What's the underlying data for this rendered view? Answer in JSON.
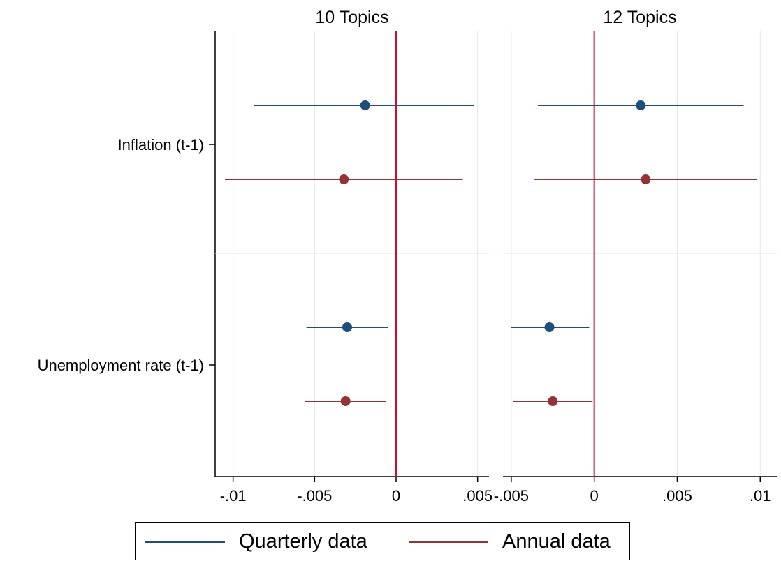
{
  "chart_data": {
    "type": "scatter",
    "subtype": "coefficient-plot",
    "panels": [
      {
        "title": "10 Topics",
        "xlim": [
          -0.0111,
          0.0057
        ],
        "xticks": [
          {
            "value": -0.01,
            "label": "-.01"
          },
          {
            "value": -0.005,
            "label": "-.005"
          },
          {
            "value": 0,
            "label": "0"
          },
          {
            "value": 0.005,
            "label": ".005"
          }
        ],
        "reference_line": 0,
        "series": [
          {
            "name": "Quarterly data",
            "color": "#1f4e7a",
            "points": [
              {
                "category": "Inflation (t-1)",
                "estimate": -0.0019,
                "ci": [
                  -0.0087,
                  0.0048
                ]
              },
              {
                "category": "Unemployment rate (t-1)",
                "estimate": -0.003,
                "ci": [
                  -0.0055,
                  -0.0005
                ]
              }
            ]
          },
          {
            "name": "Annual data",
            "color": "#943336",
            "points": [
              {
                "category": "Inflation (t-1)",
                "estimate": -0.0032,
                "ci": [
                  -0.0105,
                  0.0041
                ]
              },
              {
                "category": "Unemployment rate (t-1)",
                "estimate": -0.0031,
                "ci": [
                  -0.0056,
                  -0.0006
                ]
              }
            ]
          }
        ]
      },
      {
        "title": "12 Topics",
        "xlim": [
          -0.0055,
          0.011
        ],
        "xticks": [
          {
            "value": -0.005,
            "label": "-.005"
          },
          {
            "value": 0,
            "label": "0"
          },
          {
            "value": 0.005,
            "label": ".005"
          },
          {
            "value": 0.01,
            "label": ".01"
          }
        ],
        "reference_line": 0,
        "series": [
          {
            "name": "Quarterly data",
            "color": "#1f4e7a",
            "points": [
              {
                "category": "Inflation (t-1)",
                "estimate": 0.0028,
                "ci": [
                  -0.0034,
                  0.009
                ]
              },
              {
                "category": "Unemployment rate (t-1)",
                "estimate": -0.0027,
                "ci": [
                  -0.005,
                  -0.0003
                ]
              }
            ]
          },
          {
            "name": "Annual data",
            "color": "#943336",
            "points": [
              {
                "category": "Inflation (t-1)",
                "estimate": 0.0031,
                "ci": [
                  -0.0036,
                  0.0098
                ]
              },
              {
                "category": "Unemployment rate (t-1)",
                "estimate": -0.0025,
                "ci": [
                  -0.0049,
                  -0.0001
                ]
              }
            ]
          }
        ]
      }
    ],
    "categories": [
      "Inflation (t-1)",
      "Unemployment rate (t-1)"
    ],
    "reference_line_color": "#c8102e",
    "grid": true,
    "legend": {
      "placement": "bottom",
      "entries": [
        "Quarterly data",
        "Annual data"
      ]
    }
  }
}
